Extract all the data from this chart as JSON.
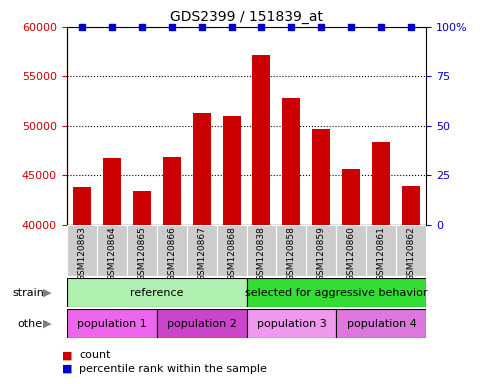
{
  "title": "GDS2399 / 151839_at",
  "samples": [
    "GSM120863",
    "GSM120864",
    "GSM120865",
    "GSM120866",
    "GSM120867",
    "GSM120868",
    "GSM120838",
    "GSM120858",
    "GSM120859",
    "GSM120860",
    "GSM120861",
    "GSM120862"
  ],
  "counts": [
    43800,
    46700,
    43400,
    46800,
    51300,
    51000,
    57200,
    52800,
    49700,
    45600,
    48400,
    43900
  ],
  "ylim_left": [
    40000,
    60000
  ],
  "ylim_right": [
    0,
    100
  ],
  "yticks_left": [
    40000,
    45000,
    50000,
    55000,
    60000
  ],
  "yticks_right": [
    0,
    25,
    50,
    75,
    100
  ],
  "bar_color": "#cc0000",
  "dot_color": "#0000cc",
  "bar_width": 0.6,
  "strain_groups": [
    {
      "label": "reference",
      "start": 0,
      "end": 6,
      "color": "#b0f0b0"
    },
    {
      "label": "selected for aggressive behavior",
      "start": 6,
      "end": 12,
      "color": "#33dd33"
    }
  ],
  "other_groups": [
    {
      "label": "population 1",
      "start": 0,
      "end": 3,
      "color": "#ee66ee"
    },
    {
      "label": "population 2",
      "start": 3,
      "end": 6,
      "color": "#cc44cc"
    },
    {
      "label": "population 3",
      "start": 6,
      "end": 9,
      "color": "#ee99ee"
    },
    {
      "label": "population 4",
      "start": 9,
      "end": 12,
      "color": "#dd77dd"
    }
  ],
  "legend_count_color": "#cc0000",
  "legend_pct_color": "#0000cc",
  "axis_color_left": "#cc0000",
  "axis_color_right": "#0000cc",
  "tick_area_bg": "#cccccc",
  "border_color": "#000000"
}
